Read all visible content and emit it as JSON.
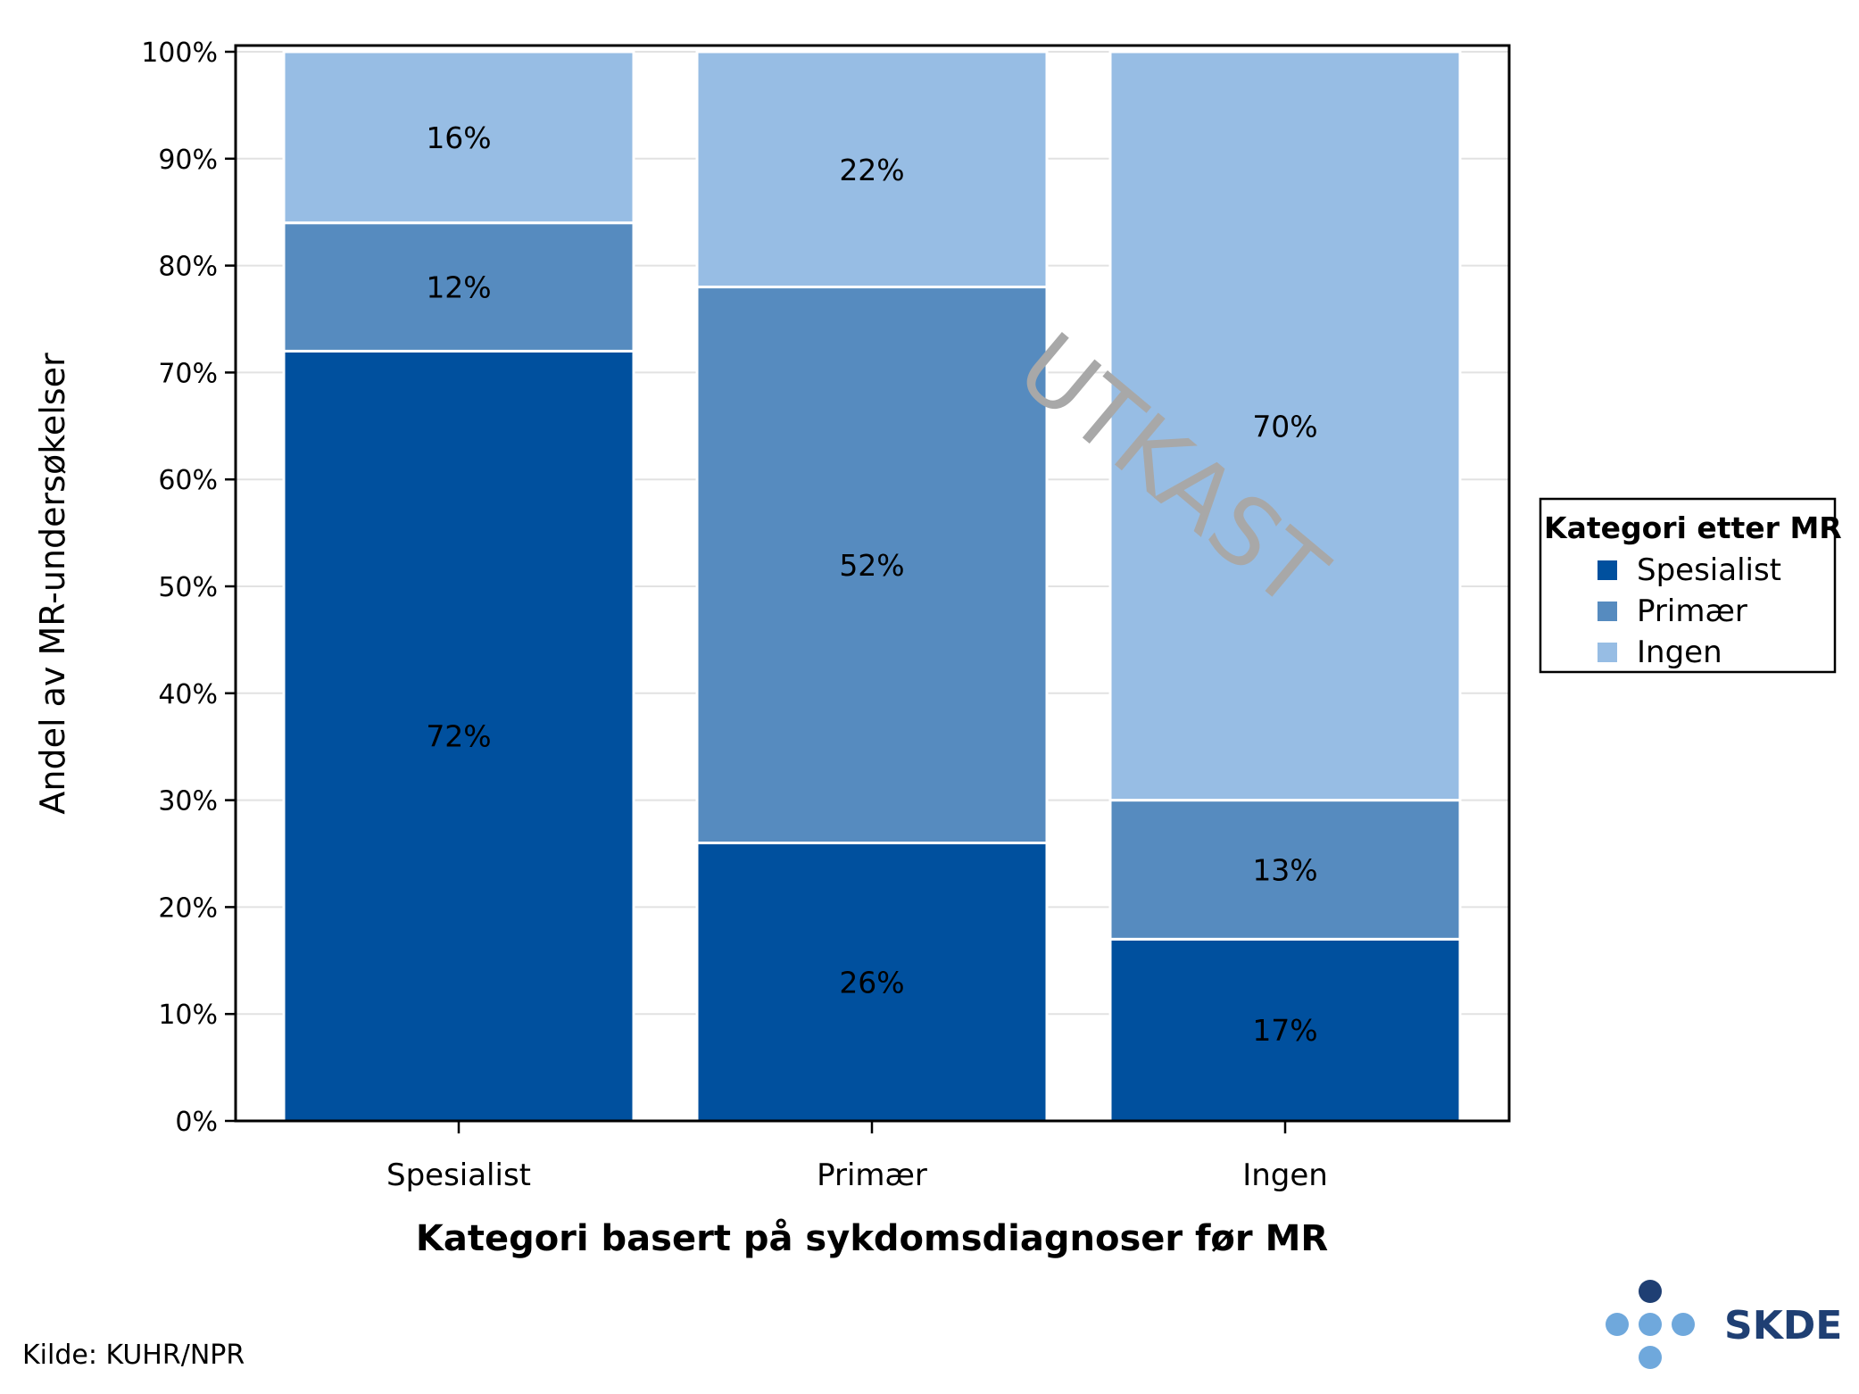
{
  "chart_data": {
    "type": "bar",
    "stacked": true,
    "categories": [
      "Spesialist",
      "Primær",
      "Ingen"
    ],
    "series": [
      {
        "name": "Spesialist",
        "color": "#00509e",
        "values": [
          72,
          26,
          17
        ],
        "labels": [
          "72%",
          "26%",
          "17%"
        ]
      },
      {
        "name": "Primær",
        "color": "#568bbf",
        "values": [
          12,
          52,
          13
        ],
        "labels": [
          "12%",
          "52%",
          "13%"
        ]
      },
      {
        "name": "Ingen",
        "color": "#97bde4",
        "values": [
          16,
          22,
          70
        ],
        "labels": [
          "16%",
          "22%",
          "70%"
        ]
      }
    ],
    "xlabel": "Kategori basert på sykdomsdiagnoser før MR",
    "ylabel": "Andel av MR-undersøkelser",
    "ylim": [
      0,
      100
    ],
    "yticks": [
      "0%",
      "10%",
      "20%",
      "30%",
      "40%",
      "50%",
      "60%",
      "70%",
      "80%",
      "90%",
      "100%"
    ],
    "grid": true,
    "legend": {
      "title": "Kategori etter MR",
      "placement": "right"
    }
  },
  "watermark": "UTKAST",
  "source": "Kilde: KUHR/NPR",
  "logo": {
    "text": "SKDE",
    "dark_color": "#1f3f73",
    "light_color": "#6fa8dc"
  }
}
